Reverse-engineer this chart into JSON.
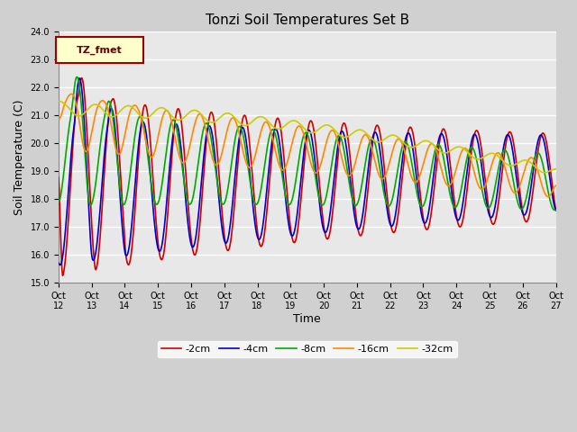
{
  "title": "Tonzi Soil Temperatures Set B",
  "xlabel": "Time",
  "ylabel": "Soil Temperature (C)",
  "ylim": [
    15.0,
    24.0
  ],
  "ytick_vals": [
    15.0,
    16.0,
    17.0,
    18.0,
    19.0,
    20.0,
    21.0,
    22.0,
    23.0,
    24.0
  ],
  "xtick_labels": [
    "Oct 12",
    "Oct 13",
    "Oct 14",
    "Oct 15",
    "Oct 16",
    "Oct 17",
    "Oct 18",
    "Oct 19",
    "Oct 20",
    "Oct 21",
    "Oct 22",
    "Oct 23",
    "Oct 24",
    "Oct 25",
    "Oct 26",
    "Oct 27"
  ],
  "series_labels": [
    "-2cm",
    "-4cm",
    "-8cm",
    "-16cm",
    "-32cm"
  ],
  "series_colors": [
    "#cc0000",
    "#0000cc",
    "#00aa00",
    "#ff8800",
    "#cccc00"
  ],
  "legend_label": "TZ_fmet",
  "legend_box_facecolor": "#ffffcc",
  "legend_box_edgecolor": "#990000",
  "fig_facecolor": "#d0d0d0",
  "ax_facecolor": "#e8e8e8",
  "grid_color": "#ffffff",
  "title_fontsize": 11,
  "tick_fontsize": 7,
  "label_fontsize": 9
}
